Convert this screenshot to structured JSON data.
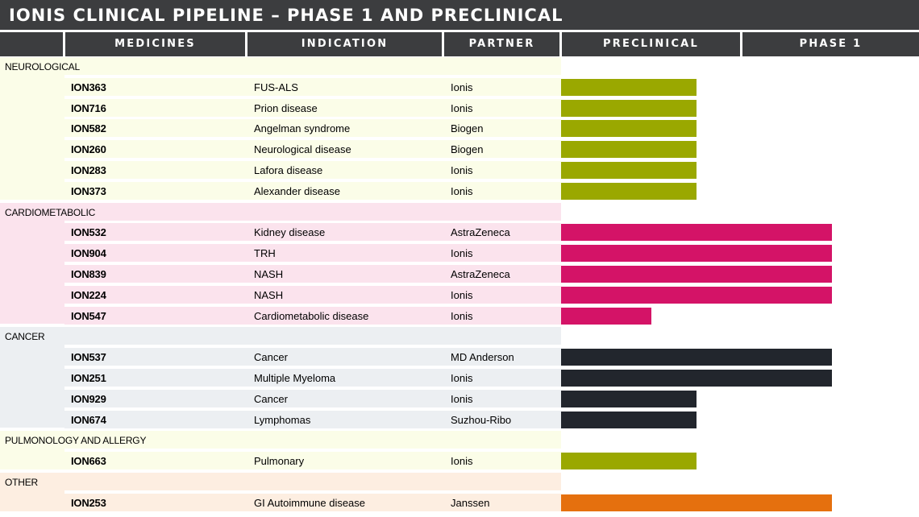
{
  "title": "IONIS CLINICAL PIPELINE – PHASE 1 AND PRECLINICAL",
  "columns": {
    "blank": "",
    "medicines": "MEDICINES",
    "indication": "INDICATION",
    "partner": "PARTNER",
    "preclinical": "PRECLINICAL",
    "phase1": "PHASE 1"
  },
  "chart_data": {
    "type": "table",
    "stages": [
      "PRECLINICAL",
      "PHASE 1"
    ],
    "progress_scale": "0 = start of preclinical, 1 = end of preclinical, 2 = end of phase 1",
    "categories": [
      {
        "name": "NEUROLOGICAL",
        "row_bg": "#fbfde8",
        "label_bg": "#fbfde8",
        "bar_color": "#9aa800",
        "items": [
          {
            "medicine": "ION363",
            "indication": "FUS-ALS",
            "partner": "Ionis",
            "progress": 0.75
          },
          {
            "medicine": "ION716",
            "indication": "Prion disease",
            "partner": "Ionis",
            "progress": 0.75
          },
          {
            "medicine": "ION582",
            "indication": "Angelman syndrome",
            "partner": "Biogen",
            "progress": 0.75
          },
          {
            "medicine": "ION260",
            "indication": "Neurological disease",
            "partner": "Biogen",
            "progress": 0.75
          },
          {
            "medicine": "ION283",
            "indication": "Lafora disease",
            "partner": "Ionis",
            "progress": 0.75
          },
          {
            "medicine": "ION373",
            "indication": "Alexander disease",
            "partner": "Ionis",
            "progress": 0.75
          }
        ]
      },
      {
        "name": "CARDIOMETABOLIC",
        "row_bg": "#fbe3ed",
        "label_bg": "#fbe3ed",
        "bar_color": "#d41367",
        "items": [
          {
            "medicine": "ION532",
            "indication": "Kidney disease",
            "partner": "AstraZeneca",
            "progress": 1.5
          },
          {
            "medicine": "ION904",
            "indication": "TRH",
            "partner": "Ionis",
            "progress": 1.5
          },
          {
            "medicine": "ION839",
            "indication": "NASH",
            "partner": "AstraZeneca",
            "progress": 1.5
          },
          {
            "medicine": "ION224",
            "indication": "NASH",
            "partner": "Ionis",
            "progress": 1.5
          },
          {
            "medicine": "ION547",
            "indication": "Cardiometabolic disease",
            "partner": "Ionis",
            "progress": 0.5
          }
        ]
      },
      {
        "name": "CANCER",
        "row_bg": "#eceff2",
        "label_bg": "#eceff2",
        "bar_color": "#22262d",
        "items": [
          {
            "medicine": "ION537",
            "indication": "Cancer",
            "partner": "MD Anderson",
            "progress": 1.5
          },
          {
            "medicine": "ION251",
            "indication": "Multiple Myeloma",
            "partner": "Ionis",
            "progress": 1.5
          },
          {
            "medicine": "ION929",
            "indication": "Cancer",
            "partner": "Ionis",
            "progress": 0.75
          },
          {
            "medicine": "ION674",
            "indication": "Lymphomas",
            "partner": "Suzhou-Ribo",
            "progress": 0.75
          }
        ]
      },
      {
        "name": "PULMONOLOGY AND ALLERGY",
        "row_bg": "#fbfde8",
        "label_bg": "#fbfde8",
        "bar_color": "#9aa800",
        "items": [
          {
            "medicine": "ION663",
            "indication": "Pulmonary",
            "partner": "Ionis",
            "progress": 0.75
          }
        ]
      },
      {
        "name": "OTHER",
        "row_bg": "#fdeee1",
        "label_bg": "#fdeee1",
        "bar_color": "#e5700e",
        "items": [
          {
            "medicine": "ION253",
            "indication": "GI Autoimmune disease",
            "partner": "Janssen",
            "progress": 1.5
          }
        ]
      }
    ]
  }
}
